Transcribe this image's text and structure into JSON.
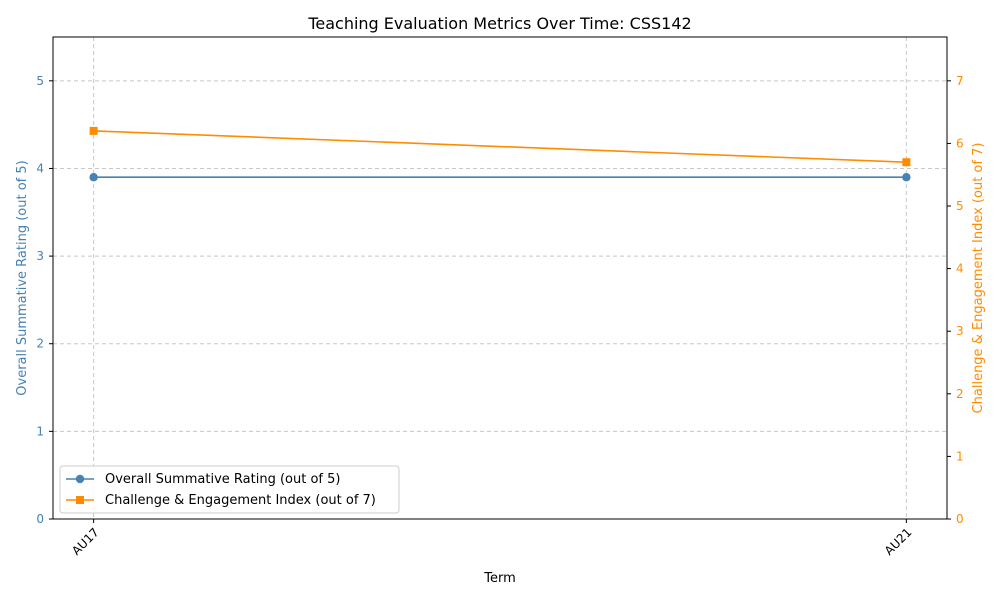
{
  "chart_data": {
    "type": "line",
    "title": "Teaching Evaluation Metrics Over Time: CSS142",
    "xlabel": "Term",
    "ylabel_left": "Overall Summative Rating (out of 5)",
    "ylabel_right": "Challenge & Engagement Index (out of 7)",
    "categories": [
      "AU17",
      "AU21"
    ],
    "ylim_left": [
      0,
      5.5
    ],
    "ylim_right": [
      0,
      7.7
    ],
    "yticks_left": [
      0,
      1,
      2,
      3,
      4,
      5
    ],
    "yticks_right": [
      0,
      1,
      2,
      3,
      4,
      5,
      6,
      7
    ],
    "grid": true,
    "legend_position": "lower-left",
    "series": [
      {
        "name": "Overall Summative Rating (out of 5)",
        "axis": "left",
        "values": [
          3.9,
          3.9
        ],
        "color": "#4682b4",
        "marker": "circle"
      },
      {
        "name": "Challenge & Engagement Index (out of 7)",
        "axis": "right",
        "values": [
          6.2,
          5.7
        ],
        "color": "#ff8c00",
        "marker": "square"
      }
    ]
  }
}
